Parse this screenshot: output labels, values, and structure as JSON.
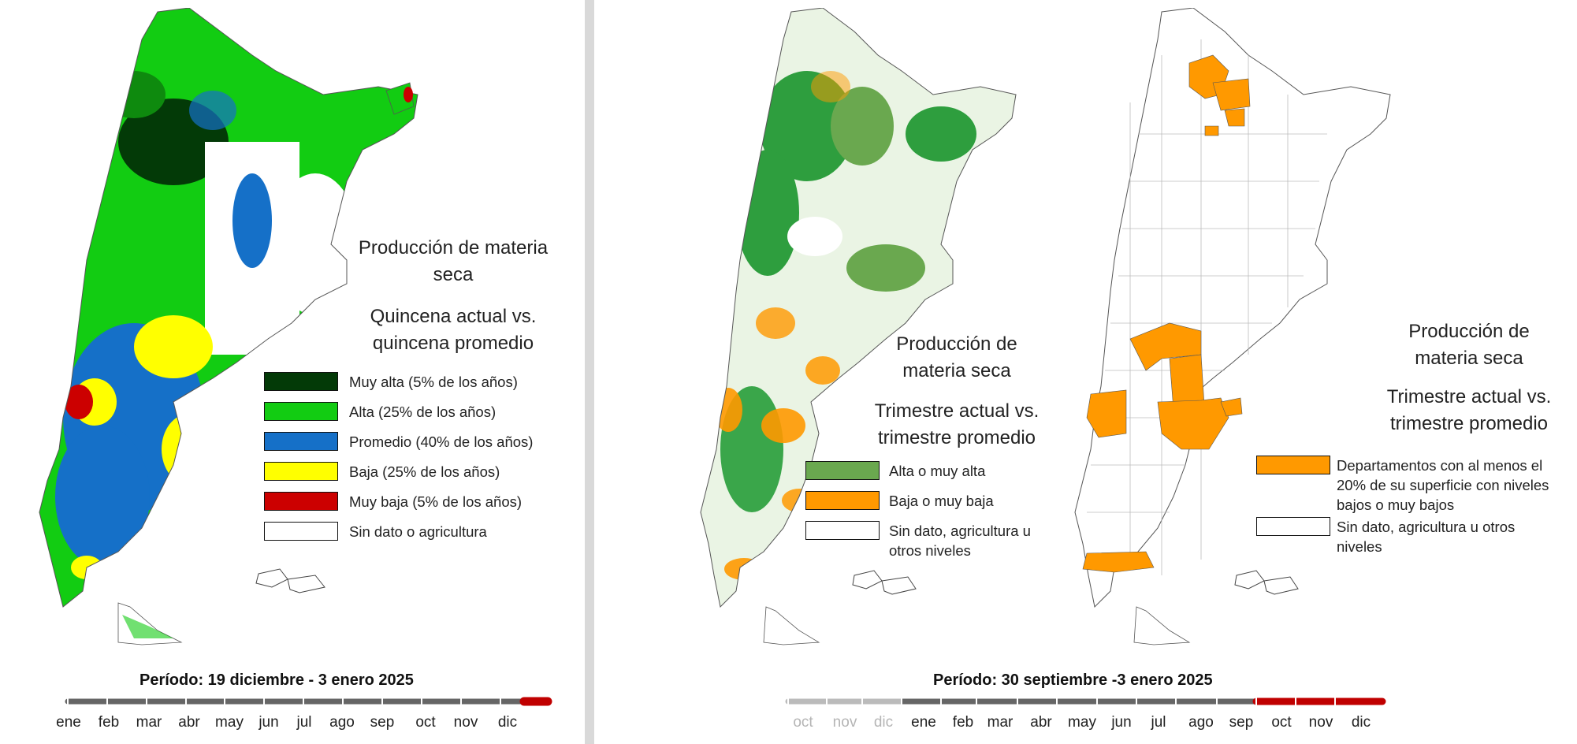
{
  "left": {
    "title_line1": "Producción de materia",
    "title_line2": "seca",
    "subtitle_line1": "Quincena actual vs.",
    "subtitle_line2": "quincena  promedio",
    "legend": [
      {
        "label": "Muy alta (5% de los años)",
        "color": "#033a07"
      },
      {
        "label": "Alta (25% de los años)",
        "color": "#12cc12"
      },
      {
        "label": "Promedio (40% de los años)",
        "color": "#1570c8"
      },
      {
        "label": "Baja (25% de los años)",
        "color": "#ffff00"
      },
      {
        "label": "Muy baja (5% de los años)",
        "color": "#cc0000"
      },
      {
        "label": "Sin dato o agricultura",
        "color": "#ffffff"
      }
    ],
    "period": "Período:  19 diciembre  - 3 enero 2025",
    "months": [
      "ene",
      "feb",
      "mar",
      "abr",
      "may",
      "jun",
      "jul",
      "ago",
      "sep",
      "oct",
      "nov",
      "dic"
    ]
  },
  "middle": {
    "title_line1": "Producción de",
    "title_line2": "materia seca",
    "subtitle_line1": "Trimestre actual vs.",
    "subtitle_line2": "trimestre promedio",
    "legend": [
      {
        "label": "Alta o muy alta",
        "color": "#6aa84f"
      },
      {
        "label": "Baja o muy baja",
        "color": "#ff9900"
      },
      {
        "label_line1": "Sin dato, agricultura u",
        "label_line2": "otros niveles",
        "color": "#ffffff"
      }
    ]
  },
  "right": {
    "title_line1": "Producción de",
    "title_line2": "materia seca",
    "subtitle_line1": "Trimestre actual vs.",
    "subtitle_line2": "trimestre promedio",
    "legend": [
      {
        "label_line1": "Departamentos con al menos el",
        "label_line2": "20% de su superficie con niveles",
        "label_line3": "bajos o muy bajos",
        "color": "#ff9900"
      },
      {
        "label_line1": "Sin dato, agricultura u otros",
        "label_line2": "niveles",
        "color": "#ffffff"
      }
    ]
  },
  "bottom_right": {
    "period": "Período:  30 septiembre -3 enero 2025",
    "months_prev": [
      "oct",
      "nov",
      "dic"
    ],
    "months": [
      "ene",
      "feb",
      "mar",
      "abr",
      "may",
      "jun",
      "jul",
      "ago",
      "sep",
      "oct",
      "nov",
      "dic"
    ]
  },
  "colors": {
    "timeline_gray": "#666666",
    "timeline_light": "#bbbbbb",
    "timeline_highlight": "#c00000",
    "map_border": "#555555",
    "orange": "#ff9900"
  }
}
